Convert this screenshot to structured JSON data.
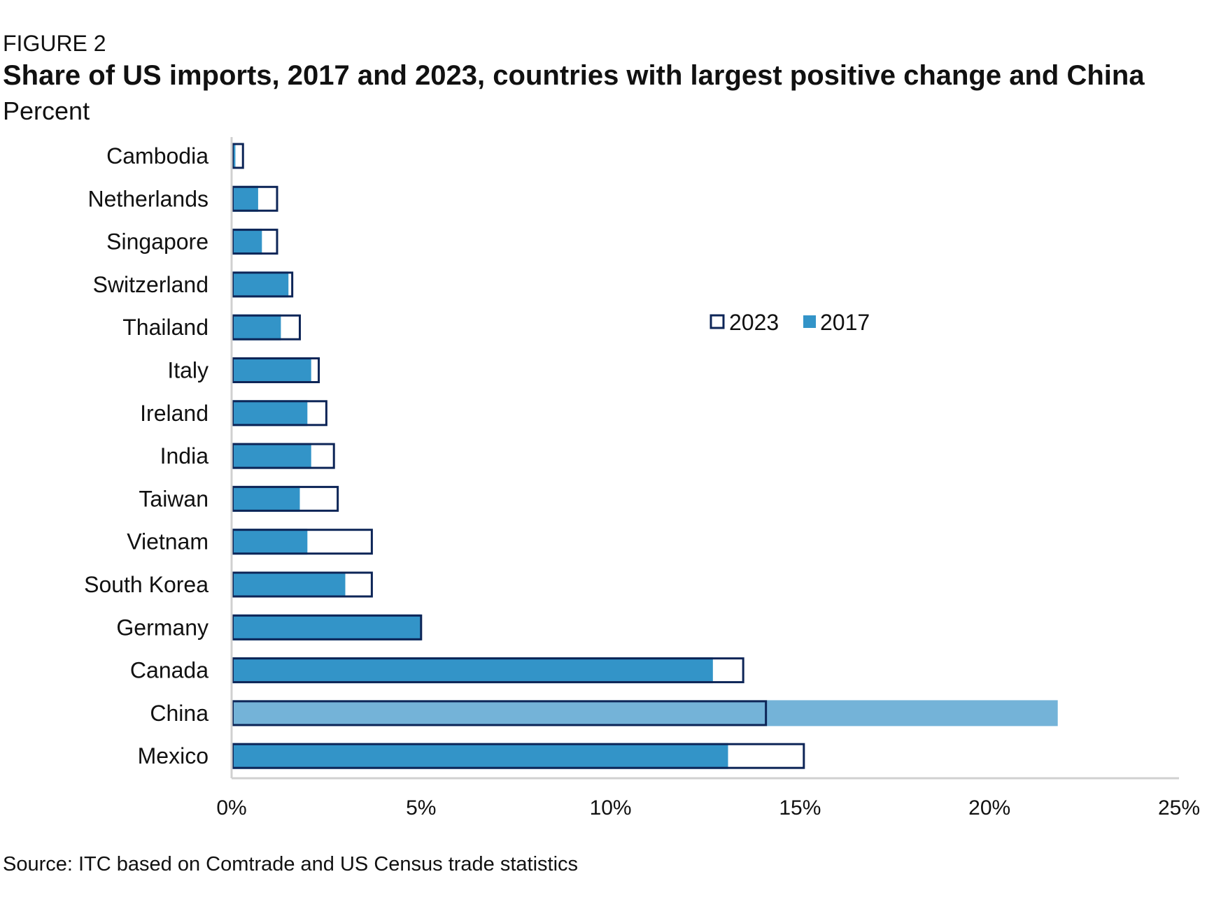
{
  "figure_label": "FIGURE 2",
  "chart_data": {
    "type": "bar",
    "orientation": "horizontal",
    "title": "Share of US imports, 2017 and 2023, countries with largest positive change and China",
    "subtitle": "Percent",
    "source": "Source: ITC based on Comtrade and US Census trade statistics",
    "categories": [
      "Cambodia",
      "Netherlands",
      "Singapore",
      "Switzerland",
      "Thailand",
      "Italy",
      "Ireland",
      "India",
      "Taiwan",
      "Vietnam",
      "South Korea",
      "Germany",
      "Canada",
      "China",
      "Mexico"
    ],
    "series": [
      {
        "name": "2023",
        "values": [
          0.3,
          1.2,
          1.2,
          1.6,
          1.8,
          2.3,
          2.5,
          2.7,
          2.8,
          3.7,
          3.7,
          5.0,
          13.5,
          14.1,
          15.1
        ]
      },
      {
        "name": "2017",
        "values": [
          0.1,
          0.7,
          0.8,
          1.5,
          1.3,
          2.1,
          2.0,
          2.1,
          1.8,
          2.0,
          3.0,
          5.0,
          12.7,
          21.8,
          13.1
        ]
      }
    ],
    "xlim": [
      0,
      25
    ],
    "x_ticks": [
      "0%",
      "5%",
      "10%",
      "15%",
      "20%",
      "25%"
    ],
    "grid": false,
    "legend_position": "upper-middle",
    "colors": {
      "bar_2017": "#3394c8",
      "bar_2017_china": "#74b3d8",
      "outline_2023": "#0d2557",
      "axis": "#d0d0d0"
    }
  }
}
